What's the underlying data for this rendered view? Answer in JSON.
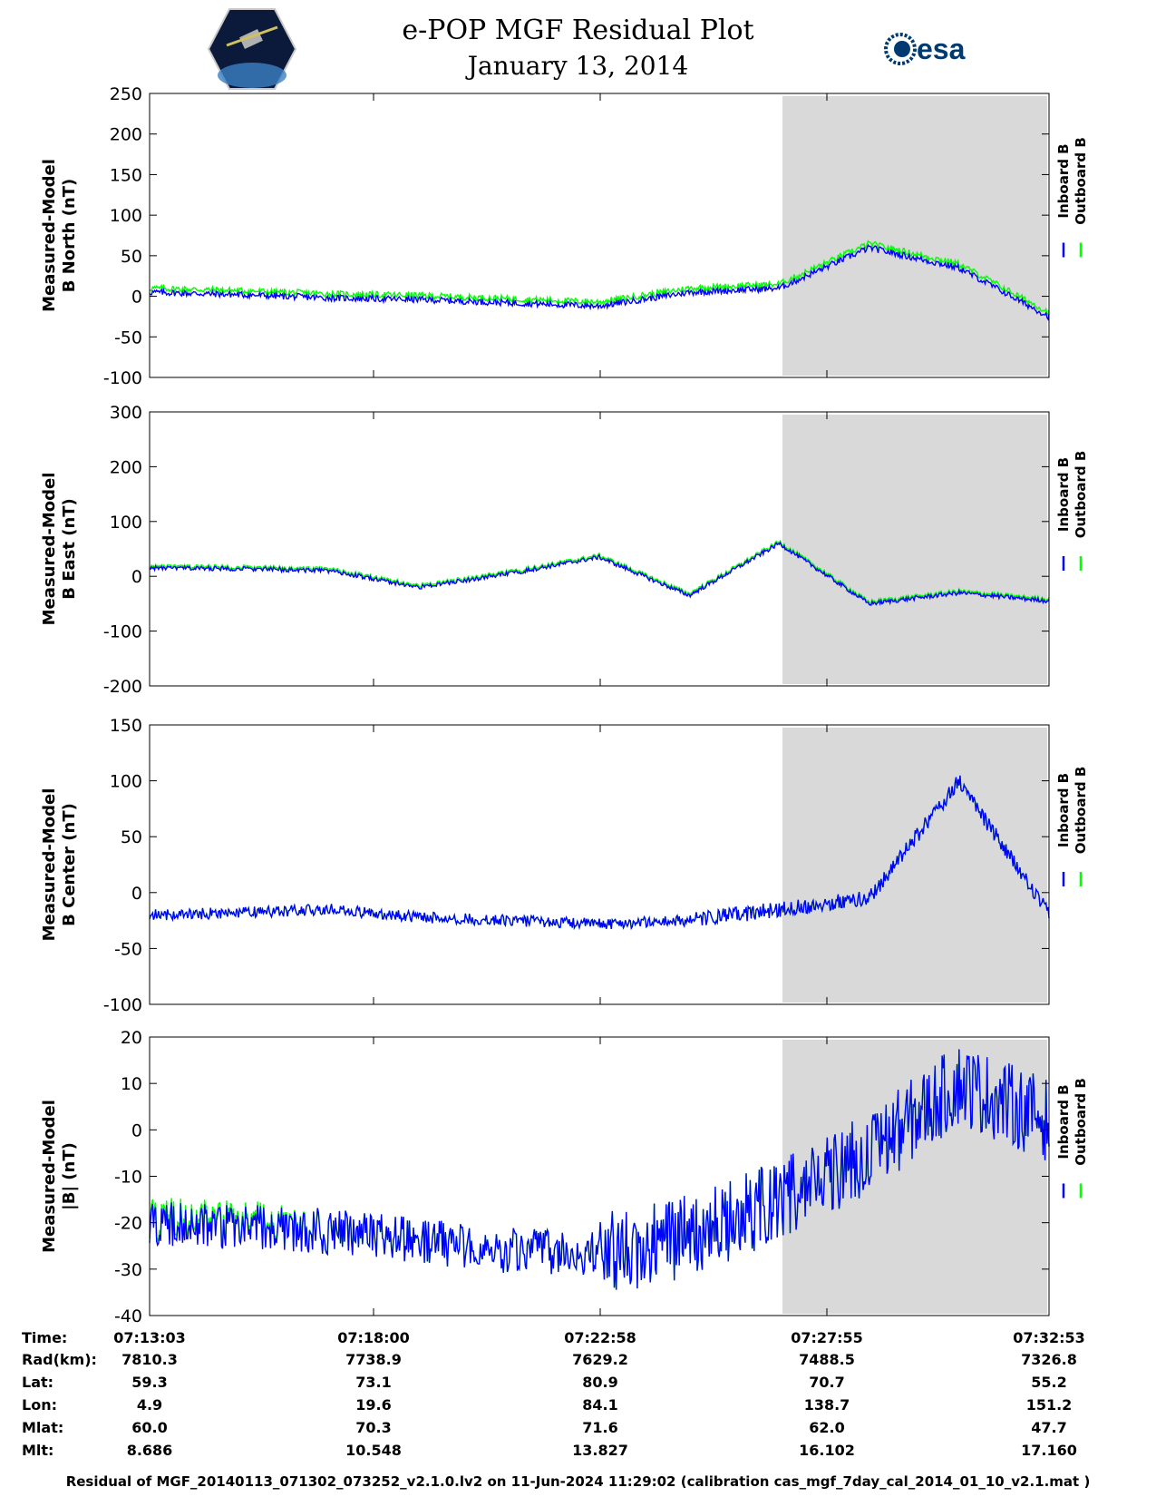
{
  "title": "e-POP MGF Residual Plot",
  "subtitle": "January 13, 2014",
  "logos": {
    "left": "CASSIOPE",
    "right": "esa"
  },
  "colors": {
    "inboard": "#0000ff",
    "outboard": "#00ff00",
    "shade": "#d9d9d9"
  },
  "chart_data": [
    {
      "type": "line",
      "ylabel": [
        "Measured-Model",
        "B North (nT)"
      ],
      "ylim": [
        -100,
        250
      ],
      "yticks": [
        -100,
        -50,
        0,
        50,
        100,
        150,
        200,
        250
      ],
      "legend": [
        "Inboard B",
        "Outboard B"
      ],
      "shaded_x_start": "07:27:55",
      "series": [
        {
          "name": "Inboard B",
          "x": [
            0,
            2,
            4,
            6,
            8,
            10,
            12,
            14,
            16,
            18,
            20
          ],
          "values": [
            5,
            2,
            -2,
            -4,
            -8,
            -12,
            5,
            10,
            60,
            35,
            -25
          ]
        },
        {
          "name": "Outboard B",
          "x": [
            0,
            2,
            4,
            6,
            8,
            10,
            12,
            14,
            16,
            18,
            20
          ],
          "values": [
            10,
            7,
            3,
            1,
            -3,
            -7,
            10,
            15,
            65,
            40,
            -20
          ]
        }
      ]
    },
    {
      "type": "line",
      "ylabel": [
        "Measured-Model",
        "B East (nT)"
      ],
      "ylim": [
        -200,
        300
      ],
      "yticks": [
        -200,
        -100,
        0,
        100,
        200,
        300
      ],
      "legend": [
        "Inboard B",
        "Outboard B"
      ],
      "shaded_x_start": "07:27:55",
      "series": [
        {
          "name": "Inboard B",
          "x": [
            0,
            2,
            4,
            6,
            8,
            10,
            12,
            14,
            16,
            18,
            20
          ],
          "values": [
            15,
            14,
            10,
            -20,
            5,
            35,
            -35,
            60,
            -50,
            -30,
            -45
          ]
        },
        {
          "name": "Outboard B",
          "x": [
            0,
            2,
            4,
            6,
            8,
            10,
            12,
            14,
            16,
            18,
            20
          ],
          "values": [
            18,
            17,
            13,
            -17,
            8,
            38,
            -32,
            63,
            -47,
            -27,
            -42
          ]
        }
      ]
    },
    {
      "type": "line",
      "ylabel": [
        "Measured-Model",
        "B Center (nT)"
      ],
      "ylim": [
        -100,
        150
      ],
      "yticks": [
        -100,
        -50,
        0,
        50,
        100,
        150
      ],
      "legend": [
        "Inboard B",
        "Outboard B"
      ],
      "shaded_x_start": "07:27:55",
      "series": [
        {
          "name": "Inboard B",
          "x": [
            0,
            2,
            4,
            6,
            8,
            10,
            12,
            14,
            16,
            18,
            20
          ],
          "values": [
            -20,
            -18,
            -15,
            -22,
            -25,
            -28,
            -25,
            -15,
            -5,
            100,
            -20
          ]
        },
        {
          "name": "Outboard B",
          "x": [
            0,
            2,
            4,
            6,
            8,
            10,
            12,
            14,
            16,
            18,
            20
          ],
          "values": [
            -20,
            -18,
            -15,
            -22,
            -25,
            -28,
            -25,
            -15,
            -5,
            100,
            -20
          ]
        }
      ]
    },
    {
      "type": "line",
      "ylabel": [
        "Measured-Model",
        "|B| (nT)"
      ],
      "ylim": [
        -40,
        20
      ],
      "yticks": [
        -40,
        -30,
        -20,
        -10,
        0,
        10,
        20
      ],
      "legend": [
        "Inboard B",
        "Outboard B"
      ],
      "shaded_x_start": "07:27:55",
      "series": [
        {
          "name": "Inboard B",
          "x": [
            0,
            2,
            4,
            6,
            8,
            10,
            12,
            14,
            16,
            18,
            20
          ],
          "values": [
            -20,
            -21,
            -22,
            -24,
            -26,
            -27,
            -23,
            -15,
            -5,
            10,
            2
          ]
        },
        {
          "name": "Outboard B",
          "x": [
            0,
            2,
            4,
            6,
            8,
            10,
            12,
            14,
            16,
            18,
            20
          ],
          "values": [
            -19,
            -20,
            -22,
            -24,
            -26,
            -27,
            -23,
            -15,
            -5,
            10,
            2
          ]
        }
      ]
    }
  ],
  "xticks": [
    "07:13:03",
    "07:18:00",
    "07:22:58",
    "07:27:55",
    "07:32:53"
  ],
  "stats": {
    "labels": [
      "Time:",
      "Rad(km):",
      "Lat:",
      "Lon:",
      "Mlat:",
      "Mlt:"
    ],
    "rows": [
      [
        "07:13:03",
        "07:18:00",
        "07:22:58",
        "07:27:55",
        "07:32:53"
      ],
      [
        "7810.3",
        "7738.9",
        "7629.2",
        "7488.5",
        "7326.8"
      ],
      [
        "59.3",
        "73.1",
        "80.9",
        "70.7",
        "55.2"
      ],
      [
        "4.9",
        "19.6",
        "84.1",
        "138.7",
        "151.2"
      ],
      [
        "60.0",
        "70.3",
        "71.6",
        "62.0",
        "47.7"
      ],
      [
        "8.686",
        "10.548",
        "13.827",
        "16.102",
        "17.160"
      ]
    ]
  },
  "footer": "Residual of MGF_20140113_071302_073252_v2.1.0.lv2 on 11-Jun-2024 11:29:02 (calibration cas_mgf_7day_cal_2014_01_10_v2.1.mat )"
}
